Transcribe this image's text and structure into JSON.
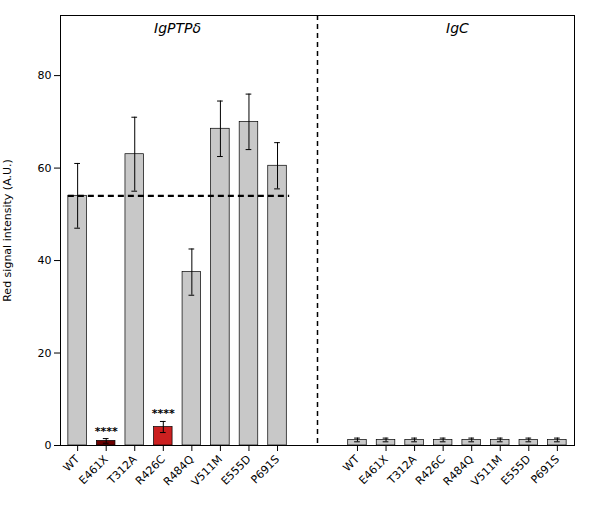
{
  "chart_data": {
    "type": "bar",
    "ylabel": "Red signal intensity (A.U.)",
    "ylim": [
      0,
      93
    ],
    "yticks": [
      0,
      20,
      40,
      60,
      80
    ],
    "hline": {
      "y": 54,
      "line_style": "dashed"
    },
    "groups": [
      {
        "label": "IgPTPδ",
        "categories": [
          "WT",
          "E461X",
          "T312A",
          "R426C",
          "R484Q",
          "V511M",
          "E555D",
          "P691S"
        ],
        "values": [
          54,
          1.0,
          63,
          4,
          37.5,
          68.5,
          70,
          60.5
        ],
        "errors": [
          7,
          0.5,
          8,
          1.2,
          5,
          6,
          6,
          5
        ],
        "colors": [
          "#c8c8c8",
          "#6b0000",
          "#c8c8c8",
          "#cc2020",
          "#c8c8c8",
          "#c8c8c8",
          "#c8c8c8",
          "#c8c8c8"
        ],
        "significance": [
          null,
          "****",
          null,
          "****",
          null,
          null,
          null,
          null
        ]
      },
      {
        "label": "IgC",
        "categories": [
          "WT",
          "E461X",
          "T312A",
          "R426C",
          "R484Q",
          "V511M",
          "E555D",
          "P691S"
        ],
        "values": [
          1.2,
          1.2,
          1.2,
          1.2,
          1.2,
          1.2,
          1.2,
          1.2
        ],
        "errors": [
          0.4,
          0.4,
          0.4,
          0.4,
          0.4,
          0.4,
          0.4,
          0.4
        ],
        "colors": [
          "#c8c8c8",
          "#c8c8c8",
          "#c8c8c8",
          "#c8c8c8",
          "#c8c8c8",
          "#c8c8c8",
          "#c8c8c8",
          "#c8c8c8"
        ]
      }
    ]
  }
}
